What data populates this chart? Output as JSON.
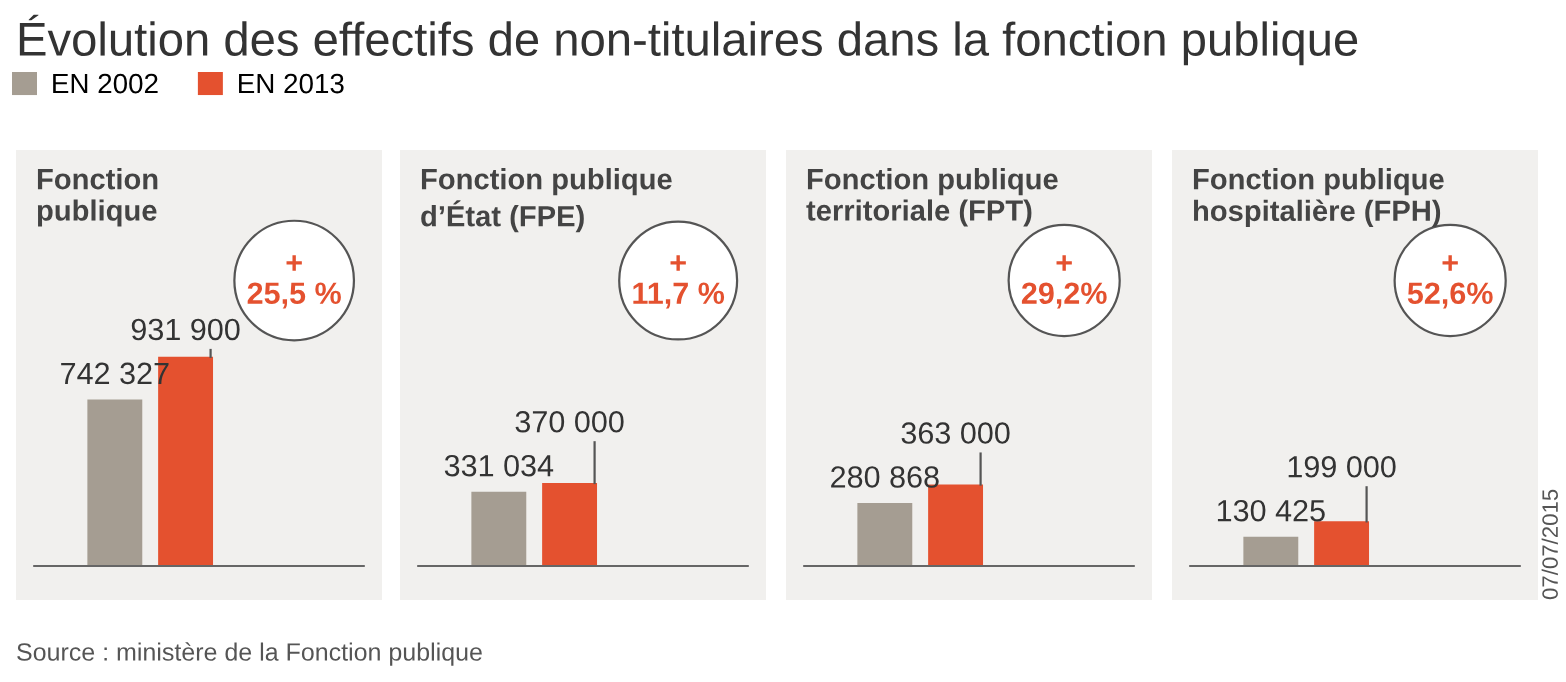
{
  "chart_data": [
    {
      "type": "bar",
      "title": "Évolution des effectifs de non-titulaires dans la fonction publique",
      "subtitle": "Fonction\npublique",
      "categories": [
        null
      ],
      "legend": "top",
      "data_labels": true,
      "series": [
        {
          "name": "EN 2002",
          "color": "#a59d92",
          "values": [
            742327
          ],
          "value_labels": [
            "742 327"
          ]
        },
        {
          "name": "EN 2013",
          "color": "#e4512f",
          "values": [
            931900
          ],
          "value_labels": [
            "931 900"
          ]
        }
      ],
      "annotations": [
        "+\n25,5 %",
        "Source : ministère de la Fonction publique",
        "07/07/2015"
      ]
    },
    {
      "type": "bar",
      "title": "Fonction publique\nd’État (FPE)",
      "categories": [
        null
      ],
      "data_labels": true,
      "series": [
        {
          "color": "#a59d92",
          "values": [
            331034
          ],
          "value_labels": [
            "331 034"
          ]
        },
        {
          "color": "#e4512f",
          "values": [
            370000
          ],
          "value_labels": [
            "370 000"
          ]
        }
      ],
      "annotations": [
        "+\n11,7 %"
      ]
    },
    {
      "type": "bar",
      "title": "Fonction publique\nterritoriale (FPT)",
      "categories": [
        null
      ],
      "data_labels": true,
      "series": [
        {
          "color": "#a59d92",
          "values": [
            280868
          ],
          "value_labels": [
            "280 868"
          ]
        },
        {
          "color": "#e4512f",
          "values": [
            363000
          ],
          "value_labels": [
            "363 000"
          ]
        }
      ],
      "annotations": [
        "+\n29,2%"
      ]
    },
    {
      "type": "bar",
      "title": "Fonction publique\nhospitalière (FPH)",
      "categories": [
        null
      ],
      "data_labels": true,
      "series": [
        {
          "color": "#a59d92",
          "values": [
            130425
          ],
          "value_labels": [
            "130 425"
          ]
        },
        {
          "color": "#e4512f",
          "values": [
            199000
          ],
          "value_labels": [
            "199 000"
          ]
        }
      ],
      "annotations": [
        "+\n52,6%"
      ]
    }
  ]
}
